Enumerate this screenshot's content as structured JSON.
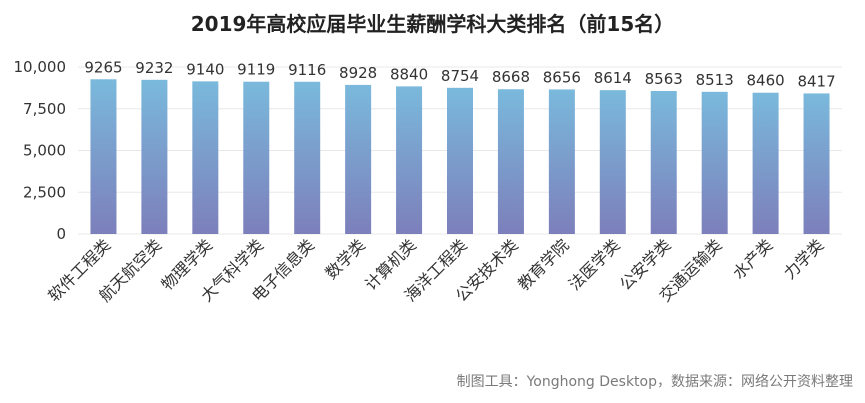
{
  "title": "2019年高校应届毕业生薪酬学科大类排名（前15名）",
  "source": "制图工具：Yonghong Desktop，数据来源：网络公开资料整理",
  "colors": {
    "bar_top": "#7ab9dc",
    "bar_bottom": "#7c7fbb",
    "grid": "#e8e8e8",
    "text": "#333333"
  },
  "chart_data": {
    "type": "bar",
    "title": "2019年高校应届毕业生薪酬学科大类排名（前15名）",
    "categories": [
      "软件工程类",
      "航天航空类",
      "物理学类",
      "大气科学类",
      "电子信息类",
      "数学类",
      "计算机类",
      "海洋工程类",
      "公安技术类",
      "教育学院",
      "法医学类",
      "公安学类",
      "交通运输类",
      "水产类",
      "力学类"
    ],
    "values": [
      9265,
      9232,
      9140,
      9119,
      9116,
      8928,
      8840,
      8754,
      8668,
      8656,
      8614,
      8563,
      8513,
      8460,
      8417
    ],
    "ylim": [
      0,
      10000
    ],
    "yticks": [
      0,
      2500,
      5000,
      7500,
      10000
    ],
    "ytick_labels": [
      "0",
      "2,500",
      "5,000",
      "7,500",
      "10,000"
    ],
    "grid": true,
    "data_labels": true
  }
}
